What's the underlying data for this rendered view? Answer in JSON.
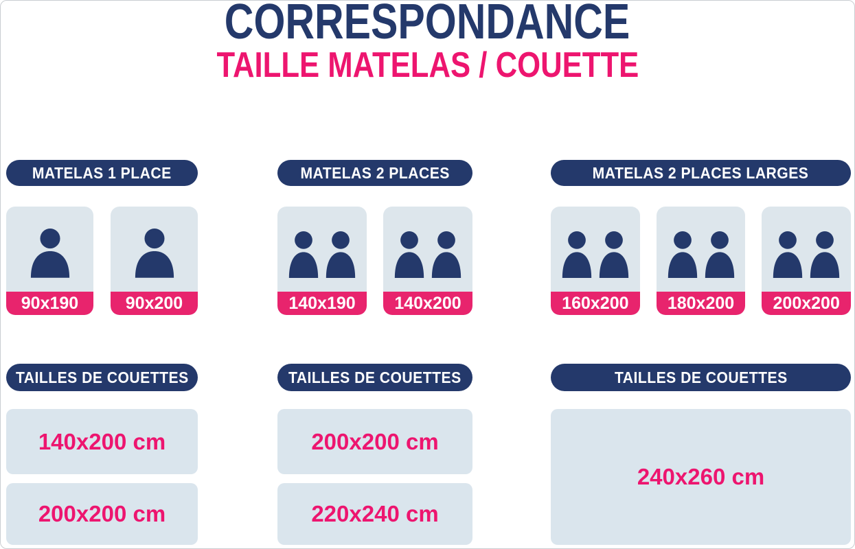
{
  "header": {
    "title": "CORRESPONDANCE",
    "subtitle": "TAILLE MATELAS / COUETTE"
  },
  "colors": {
    "navy": "#24396b",
    "pink_band": "#e8246d",
    "pink_text": "#ed156f",
    "card_bg": "#dde6ec",
    "duvet_bg": "#dae5ed",
    "white": "#ffffff"
  },
  "columns": [
    {
      "header": "MATELAS 1 PLACE",
      "mattresses": [
        {
          "size": "90x190",
          "persons": 1,
          "icon": "person-icon"
        },
        {
          "size": "90x200",
          "persons": 1,
          "icon": "person-icon"
        }
      ],
      "duvet_header": "TAILLES DE COUETTES",
      "duvets": [
        "140x200 cm",
        "200x200 cm"
      ]
    },
    {
      "header": "MATELAS 2 PLACES",
      "mattresses": [
        {
          "size": "140x190",
          "persons": 2,
          "icon": "person-icon"
        },
        {
          "size": "140x200",
          "persons": 2,
          "icon": "person-icon"
        }
      ],
      "duvet_header": "TAILLES DE COUETTES",
      "duvets": [
        "200x200 cm",
        "220x240 cm"
      ]
    },
    {
      "header": "MATELAS 2 PLACES LARGES",
      "mattresses": [
        {
          "size": "160x200",
          "persons": 2,
          "icon": "person-icon"
        },
        {
          "size": "180x200",
          "persons": 2,
          "icon": "person-icon"
        },
        {
          "size": "200x200",
          "persons": 2,
          "icon": "person-icon"
        }
      ],
      "duvet_header": "TAILLES DE COUETTES",
      "duvets": [
        "240x260 cm"
      ]
    }
  ]
}
